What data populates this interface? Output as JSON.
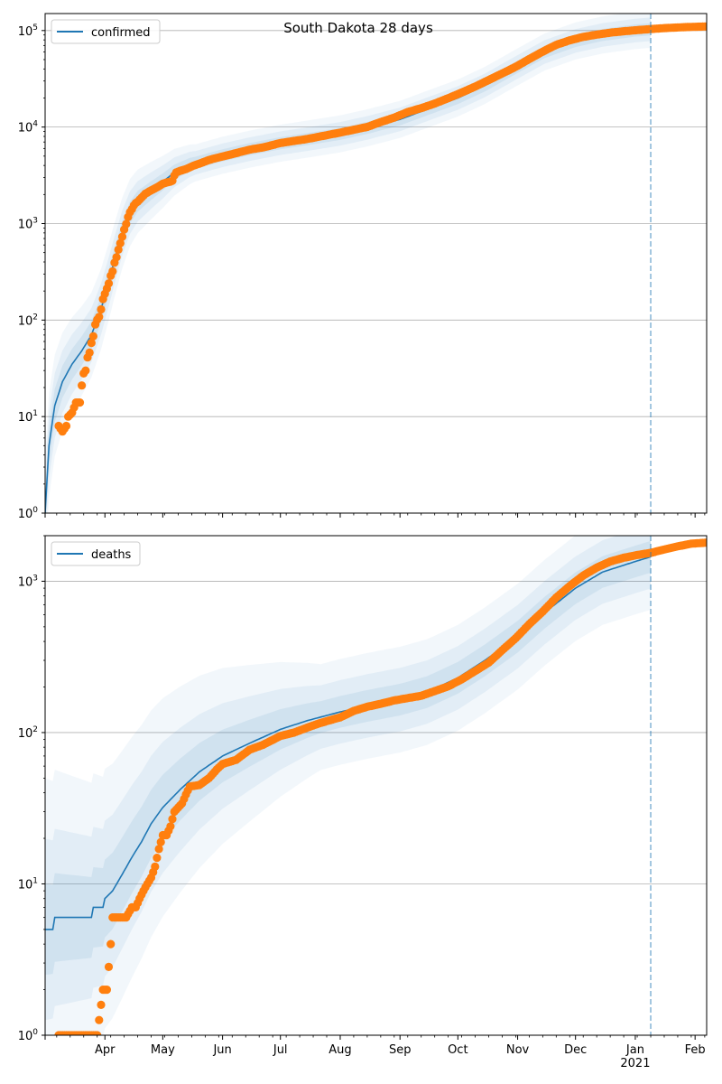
{
  "figure": {
    "title": "South Dakota 28 days"
  },
  "colors": {
    "model_line": "#1f77b4",
    "observed": "#ff7f0e",
    "band": "#1f77b4",
    "grid": "#b0b0b0",
    "forecast_line": "#1f77b4"
  },
  "chart_data": [
    {
      "type": "scatter",
      "yscale": "log",
      "ylim": [
        1,
        150000
      ],
      "xlim": [
        "2020-03-01",
        "2021-02-07"
      ],
      "grid": {
        "y": true,
        "x": false
      },
      "legend": {
        "position": "upper-left",
        "entries": [
          "confirmed"
        ]
      },
      "y_ticks": [
        {
          "value": 1,
          "label": "10^0"
        },
        {
          "value": 10,
          "label": "10^1"
        },
        {
          "value": 100,
          "label": "10^2"
        },
        {
          "value": 1000,
          "label": "10^3"
        },
        {
          "value": 10000,
          "label": "10^4"
        },
        {
          "value": 100000,
          "label": "10^5"
        }
      ],
      "forecast_start": "2021-01-09",
      "series": [
        {
          "name": "confirmed",
          "kind": "model",
          "points": [
            [
              "2020-03-01",
              1
            ],
            [
              "2020-03-03",
              5
            ],
            [
              "2020-03-06",
              13
            ],
            [
              "2020-03-10",
              23
            ],
            [
              "2020-03-15",
              35
            ],
            [
              "2020-03-20",
              48
            ],
            [
              "2020-03-25",
              70
            ],
            [
              "2020-03-30",
              130
            ],
            [
              "2020-04-03",
              250
            ],
            [
              "2020-04-06",
              420
            ],
            [
              "2020-04-10",
              800
            ],
            [
              "2020-04-14",
              1300
            ],
            [
              "2020-04-18",
              1700
            ],
            [
              "2020-04-25",
              2200
            ],
            [
              "2020-05-01",
              2700
            ],
            [
              "2020-05-07",
              3400
            ],
            [
              "2020-05-15",
              4100
            ],
            [
              "2020-06-01",
              5100
            ],
            [
              "2020-06-15",
              5900
            ],
            [
              "2020-07-01",
              6800
            ],
            [
              "2020-07-15",
              7500
            ],
            [
              "2020-08-01",
              8500
            ],
            [
              "2020-08-15",
              9800
            ],
            [
              "2020-09-01",
              12000
            ],
            [
              "2020-09-10",
              14000
            ],
            [
              "2020-10-01",
              20000
            ],
            [
              "2020-10-15",
              27000
            ],
            [
              "2020-11-01",
              42000
            ],
            [
              "2020-11-15",
              60000
            ],
            [
              "2020-12-01",
              78000
            ],
            [
              "2020-12-15",
              90000
            ],
            [
              "2021-01-01",
              100000
            ],
            [
              "2021-01-09",
              103000
            ]
          ]
        },
        {
          "name": "observed confirmed",
          "kind": "observed",
          "points": [
            [
              "2020-03-08",
              8
            ],
            [
              "2020-03-10",
              7
            ],
            [
              "2020-03-12",
              8
            ],
            [
              "2020-03-13",
              10
            ],
            [
              "2020-03-15",
              11
            ],
            [
              "2020-03-17",
              14
            ],
            [
              "2020-03-19",
              14
            ],
            [
              "2020-03-20",
              21
            ],
            [
              "2020-03-21",
              28
            ],
            [
              "2020-03-22",
              30
            ],
            [
              "2020-03-23",
              41
            ],
            [
              "2020-03-24",
              46
            ],
            [
              "2020-03-25",
              58
            ],
            [
              "2020-03-26",
              68
            ],
            [
              "2020-03-27",
              90
            ],
            [
              "2020-03-28",
              101
            ],
            [
              "2020-03-29",
              108
            ],
            [
              "2020-03-30",
              129
            ],
            [
              "2020-03-31",
              165
            ],
            [
              "2020-04-01",
              187
            ],
            [
              "2020-04-02",
              212
            ],
            [
              "2020-04-03",
              240
            ],
            [
              "2020-04-04",
              288
            ],
            [
              "2020-04-05",
              320
            ],
            [
              "2020-04-06",
              393
            ],
            [
              "2020-04-07",
              447
            ],
            [
              "2020-04-08",
              536
            ],
            [
              "2020-04-09",
              626
            ],
            [
              "2020-04-10",
              730
            ],
            [
              "2020-04-11",
              868
            ],
            [
              "2020-04-12",
              988
            ],
            [
              "2020-04-13",
              1168
            ],
            [
              "2020-04-14",
              1311
            ],
            [
              "2020-04-15",
              1411
            ],
            [
              "2020-04-16",
              1542
            ],
            [
              "2020-04-17",
              1635
            ],
            [
              "2020-04-18",
              1685
            ],
            [
              "2020-04-20",
              1858
            ],
            [
              "2020-04-22",
              2040
            ],
            [
              "2020-04-25",
              2212
            ],
            [
              "2020-04-28",
              2373
            ],
            [
              "2020-05-01",
              2588
            ],
            [
              "2020-05-03",
              2668
            ],
            [
              "2020-05-05",
              2721
            ],
            [
              "2020-05-06",
              2779
            ],
            [
              "2020-05-07",
              3144
            ],
            [
              "2020-05-08",
              3393
            ],
            [
              "2020-05-10",
              3517
            ],
            [
              "2020-05-13",
              3663
            ],
            [
              "2020-05-17",
              3987
            ],
            [
              "2020-05-21",
              4250
            ],
            [
              "2020-05-25",
              4563
            ],
            [
              "2020-06-01",
              4960
            ],
            [
              "2020-06-08",
              5367
            ],
            [
              "2020-06-15",
              5833
            ],
            [
              "2020-06-22",
              6158
            ],
            [
              "2020-07-01",
              6826
            ],
            [
              "2020-07-08",
              7177
            ],
            [
              "2020-07-15",
              7527
            ],
            [
              "2020-07-22",
              8018
            ],
            [
              "2020-08-01",
              8764
            ],
            [
              "2020-08-08",
              9374
            ],
            [
              "2020-08-15",
              10024
            ],
            [
              "2020-08-22",
              11276
            ],
            [
              "2020-08-29",
              12530
            ],
            [
              "2020-09-05",
              14317
            ],
            [
              "2020-09-12",
              15706
            ],
            [
              "2020-09-19",
              17522
            ],
            [
              "2020-09-26",
              19917
            ],
            [
              "2020-10-03",
              22793
            ],
            [
              "2020-10-10",
              26294
            ],
            [
              "2020-10-17",
              30717
            ],
            [
              "2020-10-24",
              35918
            ],
            [
              "2020-10-31",
              42113
            ],
            [
              "2020-11-07",
              50626
            ],
            [
              "2020-11-14",
              60470
            ],
            [
              "2020-11-21",
              71070
            ],
            [
              "2020-11-28",
              79223
            ],
            [
              "2020-12-05",
              85911
            ],
            [
              "2020-12-12",
              90733
            ],
            [
              "2020-12-19",
              95084
            ],
            [
              "2020-12-26",
              98238
            ],
            [
              "2021-01-02",
              101140
            ],
            [
              "2021-01-09",
              103577
            ],
            [
              "2021-01-16",
              106013
            ],
            [
              "2021-01-23",
              107664
            ],
            [
              "2021-01-30",
              109099
            ],
            [
              "2021-02-07",
              110243
            ]
          ]
        }
      ]
    },
    {
      "type": "scatter",
      "yscale": "log",
      "ylim": [
        1,
        2000
      ],
      "xlim": [
        "2020-03-01",
        "2021-02-07"
      ],
      "grid": {
        "y": true,
        "x": false
      },
      "legend": {
        "position": "upper-left",
        "entries": [
          "deaths"
        ]
      },
      "y_ticks": [
        {
          "value": 1,
          "label": "10^0"
        },
        {
          "value": 10,
          "label": "10^1"
        },
        {
          "value": 100,
          "label": "10^2"
        },
        {
          "value": 1000,
          "label": "10^3"
        }
      ],
      "x_ticks": [
        "Apr",
        "May",
        "Jun",
        "Jul",
        "Aug",
        "Sep",
        "Oct",
        "Nov",
        "Dec",
        "Jan",
        "Feb"
      ],
      "x_tick_dates": [
        "2020-04-01",
        "2020-05-01",
        "2020-06-01",
        "2020-07-01",
        "2020-08-01",
        "2020-09-01",
        "2020-10-01",
        "2020-11-01",
        "2020-12-01",
        "2021-01-01",
        "2021-02-01"
      ],
      "x_year_label": "2021",
      "forecast_start": "2021-01-09",
      "series": [
        {
          "name": "deaths",
          "kind": "model",
          "points": [
            [
              "2020-03-01",
              5
            ],
            [
              "2020-03-05",
              5
            ],
            [
              "2020-03-06",
              6
            ],
            [
              "2020-03-25",
              6
            ],
            [
              "2020-03-26",
              7
            ],
            [
              "2020-03-31",
              7
            ],
            [
              "2020-04-01",
              8
            ],
            [
              "2020-04-05",
              9
            ],
            [
              "2020-04-09",
              11
            ],
            [
              "2020-04-15",
              15
            ],
            [
              "2020-04-20",
              19
            ],
            [
              "2020-04-25",
              25
            ],
            [
              "2020-05-01",
              32
            ],
            [
              "2020-05-10",
              42
            ],
            [
              "2020-05-20",
              55
            ],
            [
              "2020-06-01",
              70
            ],
            [
              "2020-06-15",
              85
            ],
            [
              "2020-07-01",
              105
            ],
            [
              "2020-07-15",
              120
            ],
            [
              "2020-08-01",
              137
            ],
            [
              "2020-08-15",
              150
            ],
            [
              "2020-09-01",
              165
            ],
            [
              "2020-09-15",
              185
            ],
            [
              "2020-10-01",
              230
            ],
            [
              "2020-10-15",
              300
            ],
            [
              "2020-11-01",
              430
            ],
            [
              "2020-11-15",
              620
            ],
            [
              "2020-12-01",
              900
            ],
            [
              "2020-12-15",
              1150
            ],
            [
              "2021-01-01",
              1350
            ],
            [
              "2021-01-09",
              1450
            ]
          ]
        },
        {
          "name": "observed deaths",
          "kind": "observed",
          "points": [
            [
              "2020-03-08",
              1
            ],
            [
              "2020-03-12",
              1
            ],
            [
              "2020-03-16",
              1
            ],
            [
              "2020-03-20",
              1
            ],
            [
              "2020-03-24",
              1
            ],
            [
              "2020-03-28",
              1
            ],
            [
              "2020-03-31",
              2
            ],
            [
              "2020-04-02",
              2
            ],
            [
              "2020-04-04",
              4
            ],
            [
              "2020-04-05",
              6
            ],
            [
              "2020-04-08",
              6
            ],
            [
              "2020-04-12",
              6
            ],
            [
              "2020-04-15",
              7
            ],
            [
              "2020-04-17",
              7
            ],
            [
              "2020-04-19",
              8
            ],
            [
              "2020-04-21",
              9
            ],
            [
              "2020-04-23",
              10
            ],
            [
              "2020-04-25",
              11
            ],
            [
              "2020-04-27",
              13
            ],
            [
              "2020-04-29",
              17
            ],
            [
              "2020-05-01",
              21
            ],
            [
              "2020-05-03",
              21
            ],
            [
              "2020-05-05",
              24
            ],
            [
              "2020-05-07",
              30
            ],
            [
              "2020-05-09",
              32
            ],
            [
              "2020-05-11",
              34
            ],
            [
              "2020-05-13",
              39
            ],
            [
              "2020-05-15",
              44
            ],
            [
              "2020-05-20",
              45
            ],
            [
              "2020-05-25",
              50
            ],
            [
              "2020-05-29",
              57
            ],
            [
              "2020-06-01",
              62
            ],
            [
              "2020-06-08",
              66
            ],
            [
              "2020-06-15",
              77
            ],
            [
              "2020-06-22",
              83
            ],
            [
              "2020-07-01",
              95
            ],
            [
              "2020-07-08",
              100
            ],
            [
              "2020-07-15",
              108
            ],
            [
              "2020-07-22",
              116
            ],
            [
              "2020-08-01",
              126
            ],
            [
              "2020-08-08",
              139
            ],
            [
              "2020-08-15",
              148
            ],
            [
              "2020-08-22",
              155
            ],
            [
              "2020-08-29",
              163
            ],
            [
              "2020-09-05",
              169
            ],
            [
              "2020-09-12",
              175
            ],
            [
              "2020-09-19",
              188
            ],
            [
              "2020-09-26",
              202
            ],
            [
              "2020-10-03",
              225
            ],
            [
              "2020-10-10",
              255
            ],
            [
              "2020-10-17",
              290
            ],
            [
              "2020-10-24",
              350
            ],
            [
              "2020-10-31",
              420
            ],
            [
              "2020-11-07",
              520
            ],
            [
              "2020-11-14",
              630
            ],
            [
              "2020-11-21",
              780
            ],
            [
              "2020-11-28",
              930
            ],
            [
              "2020-12-05",
              1090
            ],
            [
              "2020-12-12",
              1230
            ],
            [
              "2020-12-19",
              1350
            ],
            [
              "2020-12-26",
              1430
            ],
            [
              "2021-01-02",
              1490
            ],
            [
              "2021-01-09",
              1540
            ],
            [
              "2021-01-16",
              1620
            ],
            [
              "2021-01-23",
              1700
            ],
            [
              "2021-01-30",
              1770
            ],
            [
              "2021-02-07",
              1800
            ]
          ]
        }
      ]
    }
  ]
}
